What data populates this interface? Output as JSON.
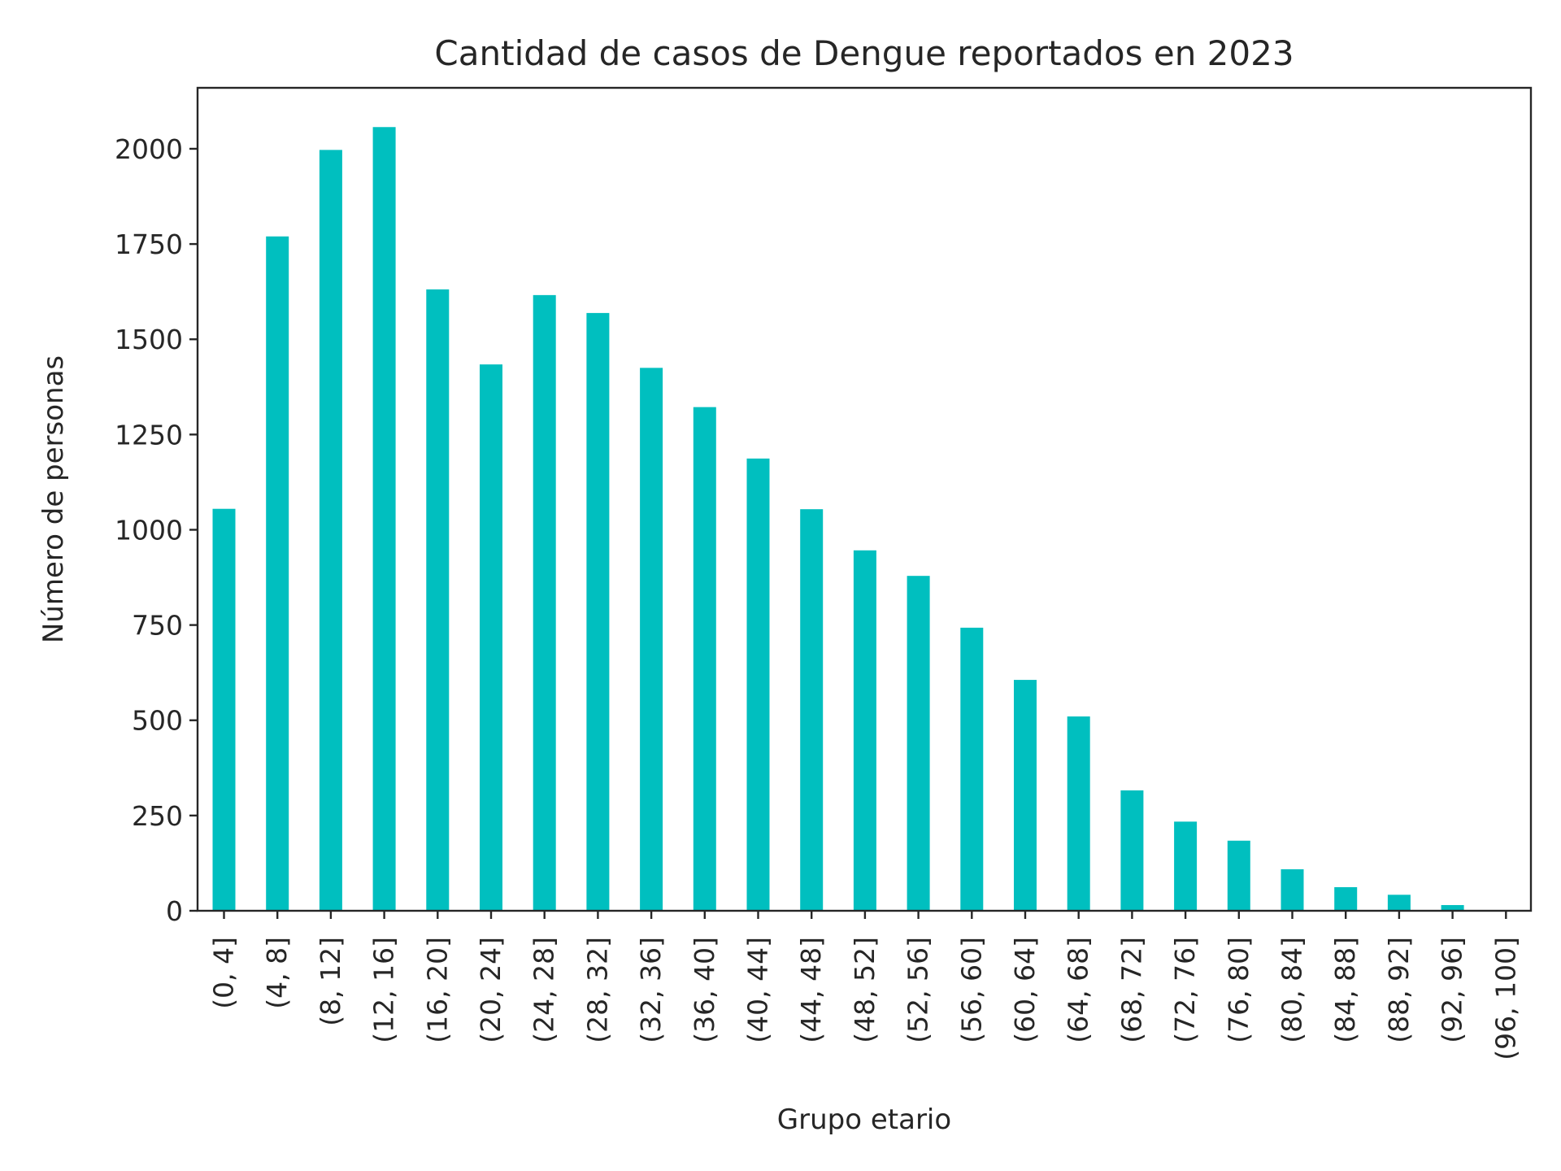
{
  "chart_data": {
    "type": "bar",
    "title": "Cantidad de casos de Dengue reportados en 2023",
    "xlabel": "Grupo etario",
    "ylabel": "Número de personas",
    "categories": [
      "(0, 4]",
      "(4, 8]",
      "(8, 12]",
      "(12, 16]",
      "(16, 20]",
      "(20, 24]",
      "(24, 28]",
      "(28, 32]",
      "(32, 36]",
      "(36, 40]",
      "(40, 44]",
      "(44, 48]",
      "(48, 52]",
      "(52, 56]",
      "(56, 60]",
      "(60, 64]",
      "(64, 68]",
      "(68, 72]",
      "(72, 76]",
      "(76, 80]",
      "(80, 84]",
      "(84, 88]",
      "(88, 92]",
      "(92, 96]",
      "(96, 100]"
    ],
    "values": [
      1055,
      1770,
      1997,
      2057,
      1631,
      1434,
      1616,
      1569,
      1425,
      1322,
      1187,
      1054,
      946,
      879,
      743,
      606,
      510,
      316,
      234,
      184,
      109,
      62,
      42,
      15,
      0
    ],
    "yticks": [
      "0",
      "250",
      "500",
      "750",
      "1000",
      "1250",
      "1500",
      "1750",
      "2000"
    ],
    "ylim": [
      0,
      2160
    ],
    "bar_color": "#00bfbf",
    "grid": false,
    "legend": "none"
  }
}
